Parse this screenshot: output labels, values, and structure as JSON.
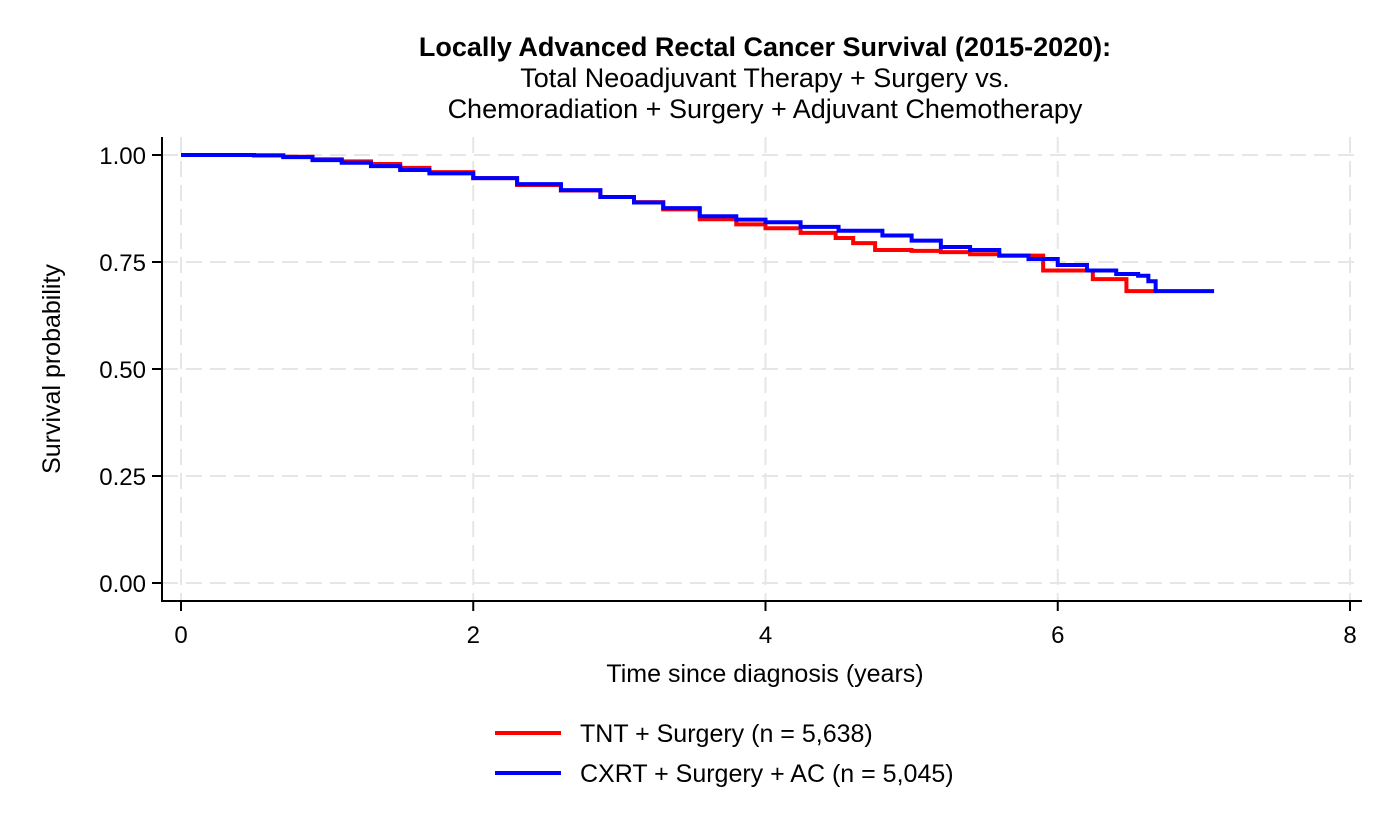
{
  "chart_data": {
    "type": "line",
    "subtype": "kaplan-meier step curve",
    "title": "Locally Advanced Rectal Cancer Survival (2015-2020):",
    "subtitle_lines": [
      "Total Neoadjuvant Therapy + Surgery vs.",
      "Chemoradiation + Surgery + Adjuvant Chemotherapy"
    ],
    "xlabel": "Time since diagnosis (years)",
    "ylabel": "Survival probability",
    "xlim": [
      0,
      8
    ],
    "ylim": [
      0,
      1
    ],
    "xticks": [
      0,
      2,
      4,
      6,
      8
    ],
    "xtick_labels": [
      "0",
      "2",
      "4",
      "6",
      "8"
    ],
    "yticks": [
      0,
      0.25,
      0.5,
      0.75,
      1
    ],
    "ytick_labels": [
      "0.00",
      "0.25",
      "0.50",
      "0.75",
      "1.00"
    ],
    "grid": true,
    "legend_position": "bottom",
    "series": [
      {
        "name": "TNT + Surgery (n = 5,638)",
        "color": "#ff0000",
        "x": [
          0,
          0.3,
          0.5,
          0.7,
          0.9,
          1.1,
          1.3,
          1.5,
          1.7,
          2.0,
          2.3,
          2.6,
          2.87,
          3.1,
          3.3,
          3.55,
          3.8,
          4.0,
          4.24,
          4.48,
          4.6,
          4.75,
          5.0,
          5.2,
          5.4,
          5.6,
          5.9,
          5.9,
          6.24,
          6.24,
          6.47,
          6.47,
          6.68
        ],
        "y": [
          1.0,
          1.0,
          0.999,
          0.996,
          0.99,
          0.985,
          0.979,
          0.97,
          0.96,
          0.946,
          0.93,
          0.917,
          0.902,
          0.89,
          0.873,
          0.85,
          0.838,
          0.829,
          0.818,
          0.806,
          0.794,
          0.778,
          0.776,
          0.773,
          0.768,
          0.765,
          0.762,
          0.73,
          0.73,
          0.71,
          0.71,
          0.682,
          0.682
        ]
      },
      {
        "name": "CXRT + Surgery + AC (n = 5,045)",
        "color": "#0000ff",
        "x": [
          0,
          0.3,
          0.5,
          0.7,
          0.9,
          1.1,
          1.3,
          1.5,
          1.7,
          2.0,
          2.3,
          2.6,
          2.87,
          3.1,
          3.3,
          3.55,
          3.8,
          4.0,
          4.24,
          4.5,
          4.8,
          5.0,
          5.2,
          5.4,
          5.6,
          5.8,
          6.0,
          6.2,
          6.4,
          6.55,
          6.62,
          6.67,
          7.07
        ],
        "y": [
          1.0,
          1.0,
          0.999,
          0.995,
          0.988,
          0.982,
          0.974,
          0.965,
          0.957,
          0.946,
          0.932,
          0.918,
          0.902,
          0.889,
          0.876,
          0.857,
          0.849,
          0.843,
          0.832,
          0.823,
          0.812,
          0.8,
          0.785,
          0.778,
          0.765,
          0.757,
          0.743,
          0.73,
          0.722,
          0.718,
          0.705,
          0.682,
          0.682
        ]
      }
    ]
  }
}
